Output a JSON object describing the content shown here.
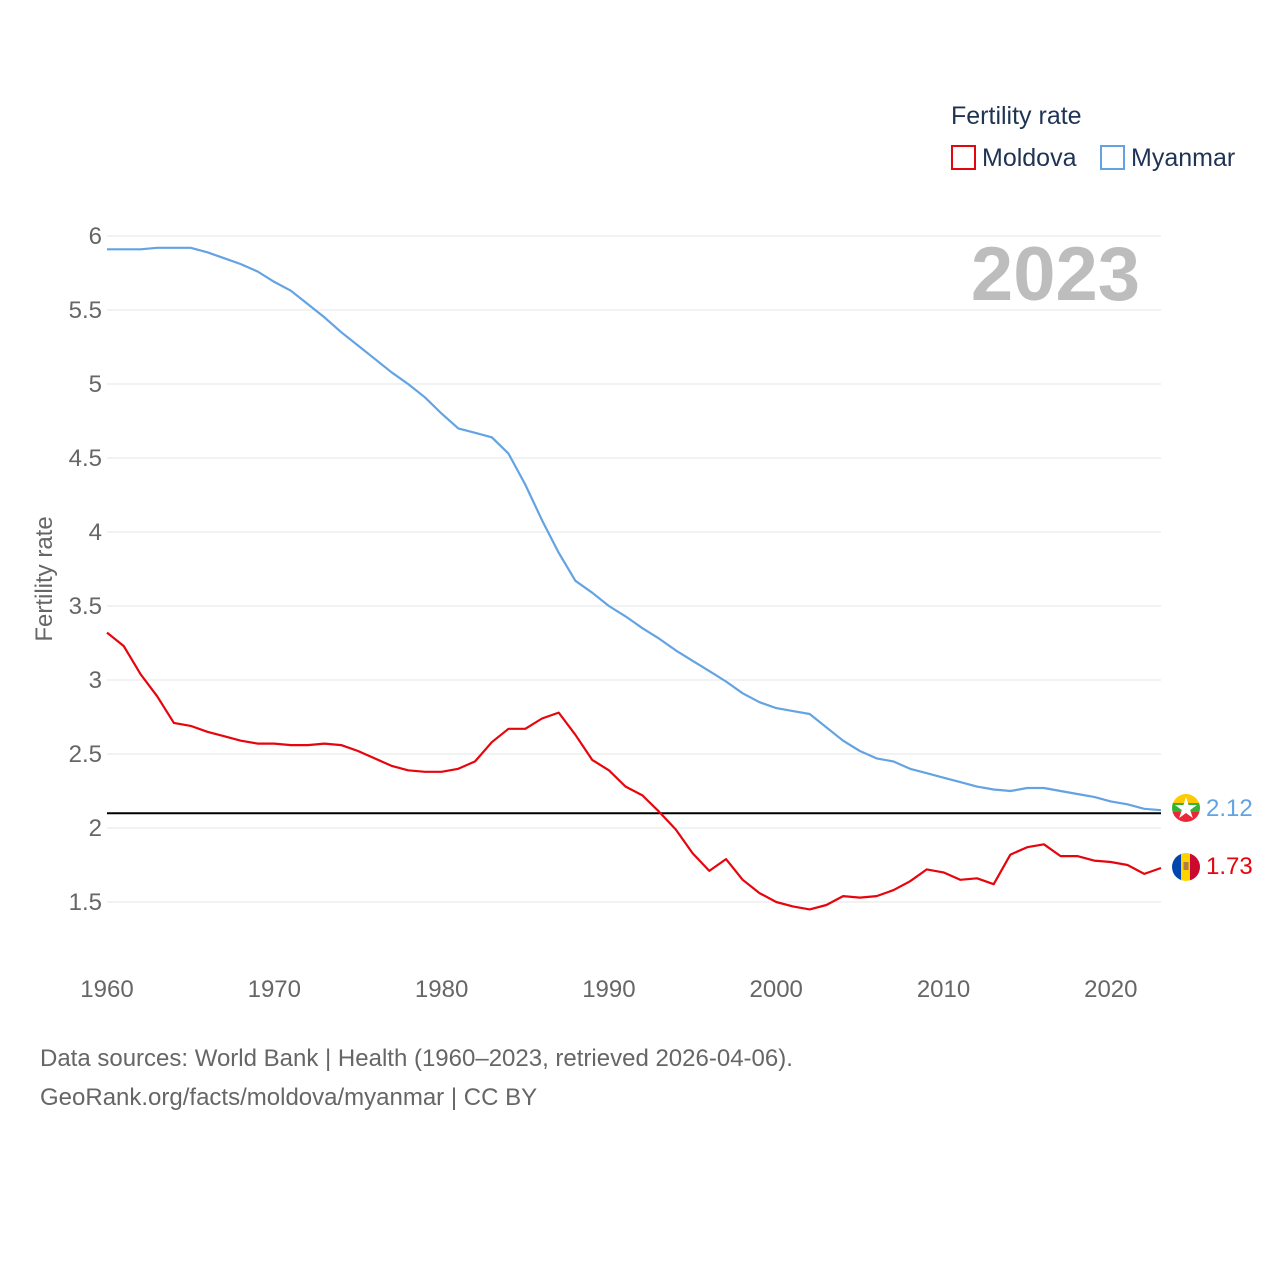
{
  "chart_data": {
    "type": "line",
    "ylabel": "Fertility rate",
    "xlabel": "",
    "ylim": [
      1.5,
      6
    ],
    "xlim": [
      1960,
      2023
    ],
    "y_ticks": [
      "6",
      "5.5",
      "5",
      "4.5",
      "4",
      "3.5",
      "3",
      "2.5",
      "2",
      "1.5"
    ],
    "y_tick_values": [
      6,
      5.5,
      5,
      4.5,
      4,
      3.5,
      3,
      2.5,
      2,
      1.5
    ],
    "x_ticks": [
      "1960",
      "1970",
      "1980",
      "1990",
      "2000",
      "2010",
      "2020"
    ],
    "x_tick_values": [
      1960,
      1970,
      1980,
      1990,
      2000,
      2010,
      2020
    ],
    "grid": true,
    "legend": {
      "title": "Fertility rate",
      "position": "top-right"
    },
    "year_label": "2023",
    "reference_line": {
      "value": 2.1,
      "color": "#000000"
    },
    "x": [
      1960,
      1961,
      1962,
      1963,
      1964,
      1965,
      1966,
      1967,
      1968,
      1969,
      1970,
      1971,
      1972,
      1973,
      1974,
      1975,
      1976,
      1977,
      1978,
      1979,
      1980,
      1981,
      1982,
      1983,
      1984,
      1985,
      1986,
      1987,
      1988,
      1989,
      1990,
      1991,
      1992,
      1993,
      1994,
      1995,
      1996,
      1997,
      1998,
      1999,
      2000,
      2001,
      2002,
      2003,
      2004,
      2005,
      2006,
      2007,
      2008,
      2009,
      2010,
      2011,
      2012,
      2013,
      2014,
      2015,
      2016,
      2017,
      2018,
      2019,
      2020,
      2021,
      2022,
      2023
    ],
    "series": [
      {
        "name": "Moldova",
        "color": "#e6050c",
        "end_label": "1.73",
        "flag": "moldova-flag",
        "values": [
          3.32,
          3.23,
          3.04,
          2.89,
          2.71,
          2.69,
          2.65,
          2.62,
          2.59,
          2.57,
          2.57,
          2.56,
          2.56,
          2.57,
          2.56,
          2.52,
          2.47,
          2.42,
          2.39,
          2.38,
          2.38,
          2.4,
          2.45,
          2.58,
          2.67,
          2.67,
          2.74,
          2.78,
          2.63,
          2.46,
          2.39,
          2.28,
          2.22,
          2.11,
          1.99,
          1.83,
          1.71,
          1.79,
          1.65,
          1.56,
          1.5,
          1.47,
          1.45,
          1.48,
          1.54,
          1.53,
          1.54,
          1.58,
          1.64,
          1.72,
          1.7,
          1.65,
          1.66,
          1.62,
          1.82,
          1.87,
          1.89,
          1.81,
          1.81,
          1.78,
          1.77,
          1.75,
          1.69,
          1.73
        ]
      },
      {
        "name": "Myanmar",
        "color": "#63a3e3",
        "end_label": "2.12",
        "flag": "myanmar-flag",
        "values": [
          5.91,
          5.91,
          5.91,
          5.92,
          5.92,
          5.92,
          5.89,
          5.85,
          5.81,
          5.76,
          5.69,
          5.63,
          5.54,
          5.45,
          5.35,
          5.26,
          5.17,
          5.08,
          5.0,
          4.91,
          4.8,
          4.7,
          4.67,
          4.64,
          4.53,
          4.32,
          4.08,
          3.86,
          3.67,
          3.59,
          3.5,
          3.43,
          3.35,
          3.28,
          3.2,
          3.13,
          3.06,
          2.99,
          2.91,
          2.85,
          2.81,
          2.79,
          2.77,
          2.68,
          2.59,
          2.52,
          2.47,
          2.45,
          2.4,
          2.37,
          2.34,
          2.31,
          2.28,
          2.26,
          2.25,
          2.27,
          2.27,
          2.25,
          2.23,
          2.21,
          2.18,
          2.16,
          2.13,
          2.12
        ]
      }
    ]
  },
  "footer": {
    "source_line": "Data sources: World Bank | Health (1960–2023, retrieved 2026-04-06).",
    "url_line": "GeoRank.org/facts/moldova/myanmar | CC BY"
  }
}
